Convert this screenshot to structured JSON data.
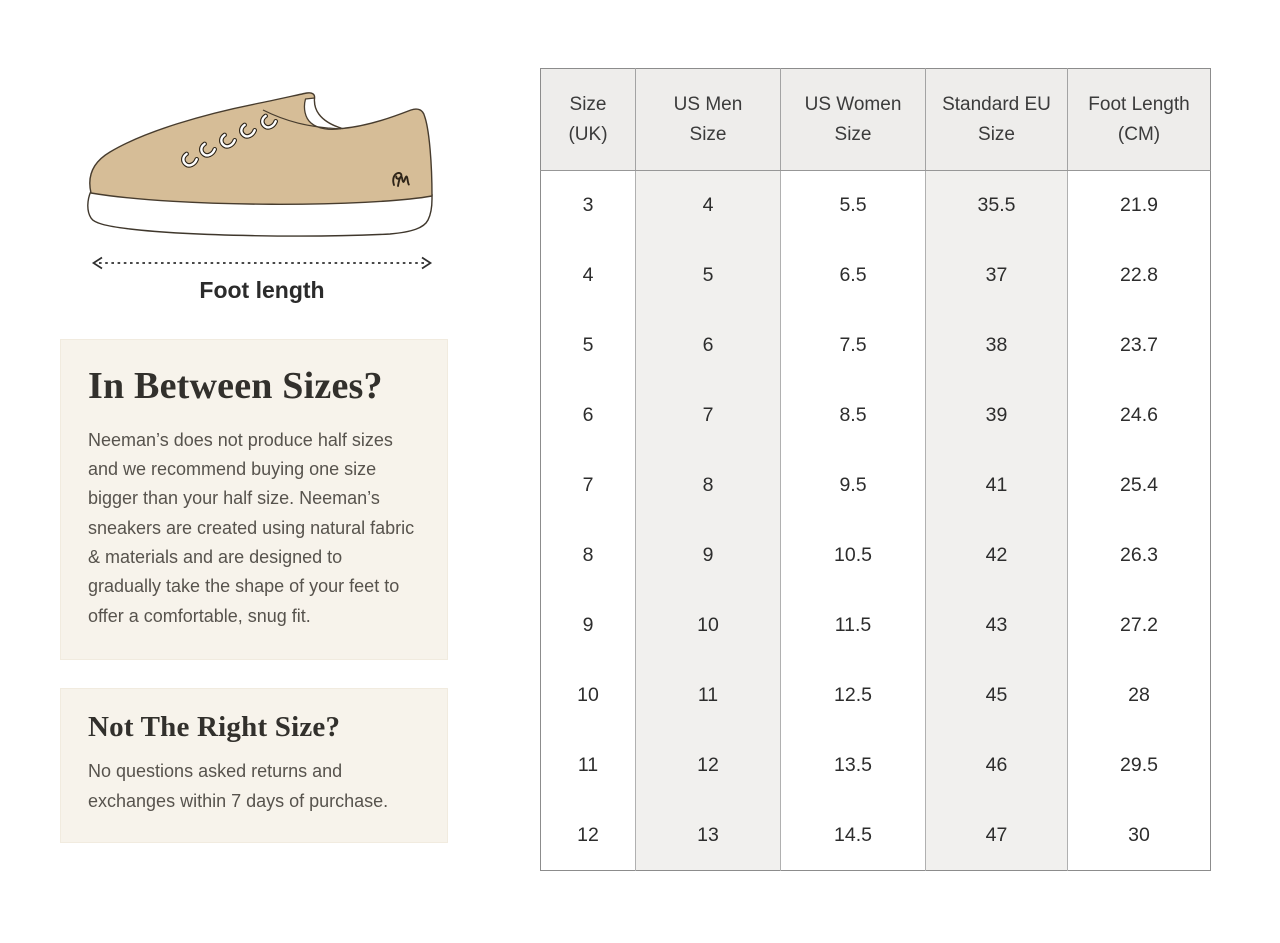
{
  "colors": {
    "page_bg": "#ffffff",
    "cream_panel": "#f7f3eb",
    "table_header_bg": "#eeedeb",
    "table_alt_column_bg": "#f1f0ee",
    "table_border": "#8c8c8c",
    "shoe_body": "#d6bd97",
    "shoe_sole": "#ffffff",
    "shoe_outline": "#473c2e",
    "heading_text": "#32302c",
    "body_text": "#57534d",
    "table_text": "#2d2d2d"
  },
  "illustration": {
    "name": "tan-sneaker-side-view",
    "foot_length_label": "Foot length"
  },
  "info_boxes": [
    {
      "title": "In Between Sizes?",
      "body": "Neeman’s does not produce half sizes and we recommend buying one size bigger than your half size. Neeman’s sneakers are created using natural fabric & materials and are designed to gradually take the shape of your feet to offer a comfortable, snug fit."
    },
    {
      "title": "Not The Right Size?",
      "body": "No questions asked returns and exchanges within 7 days of purchase."
    }
  ],
  "size_table": {
    "headers": [
      [
        "Size",
        "(UK)"
      ],
      [
        "US Men",
        "Size"
      ],
      [
        "US Women",
        "Size"
      ],
      [
        "Standard EU",
        "Size"
      ],
      [
        "Foot Length",
        "(CM)"
      ]
    ],
    "rows": [
      [
        "3",
        "4",
        "5.5",
        "35.5",
        "21.9"
      ],
      [
        "4",
        "5",
        "6.5",
        "37",
        "22.8"
      ],
      [
        "5",
        "6",
        "7.5",
        "38",
        "23.7"
      ],
      [
        "6",
        "7",
        "8.5",
        "39",
        "24.6"
      ],
      [
        "7",
        "8",
        "9.5",
        "41",
        "25.4"
      ],
      [
        "8",
        "9",
        "10.5",
        "42",
        "26.3"
      ],
      [
        "9",
        "10",
        "11.5",
        "43",
        "27.2"
      ],
      [
        "10",
        "11",
        "12.5",
        "45",
        "28"
      ],
      [
        "11",
        "12",
        "13.5",
        "46",
        "29.5"
      ],
      [
        "12",
        "13",
        "14.5",
        "47",
        "30"
      ]
    ]
  }
}
